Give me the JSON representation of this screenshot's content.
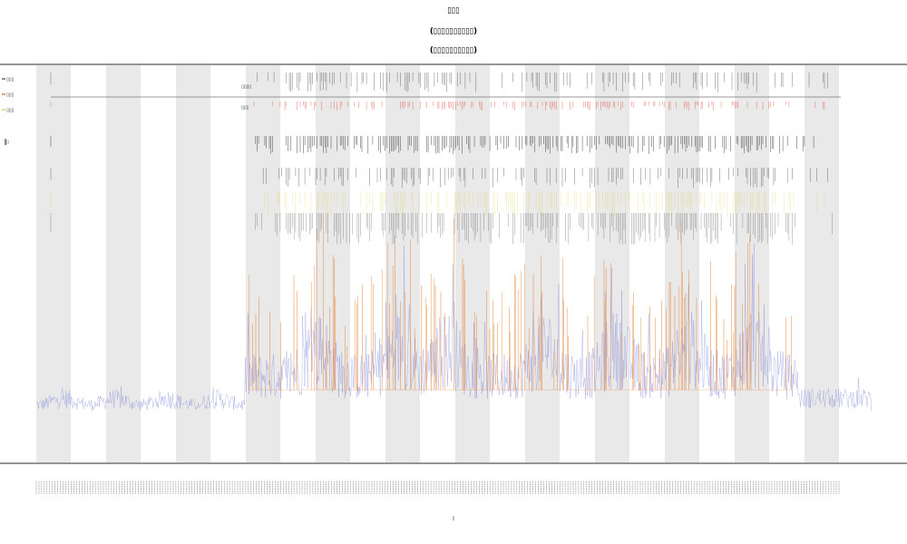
{
  "chart_data": {
    "type": "line",
    "title_lines": [
      "▯▯▯",
      "(▯▯▯▯▯▯▯▯▯▯)",
      "(▯▯▯▯▯▯▯▯▯▯)"
    ],
    "xlabel": "▯",
    "ylabel": "",
    "legend_entries": [
      {
        "name": "▯▯▯",
        "color": "#222222"
      },
      {
        "name": "▯▯▯",
        "color": "#e23a2a"
      },
      {
        "name": "▯▯▯",
        "color": "#d4c21a"
      },
      {
        "name": "▯",
        "color": "#111111"
      }
    ],
    "annotation_labels": [
      "▯▯▯▯",
      "▯▯▯"
    ],
    "x_tick_count": 300,
    "band_count": 12,
    "colors": {
      "baseline": "#7b7fd8",
      "highlight": "#e8873b",
      "band": "#e9e9e9",
      "axis": "#555555",
      "event_black": "#222222",
      "event_red": "#e23a2a",
      "event_yellow": "#e0d24a"
    },
    "grid": false,
    "legend_position": "top-left"
  }
}
